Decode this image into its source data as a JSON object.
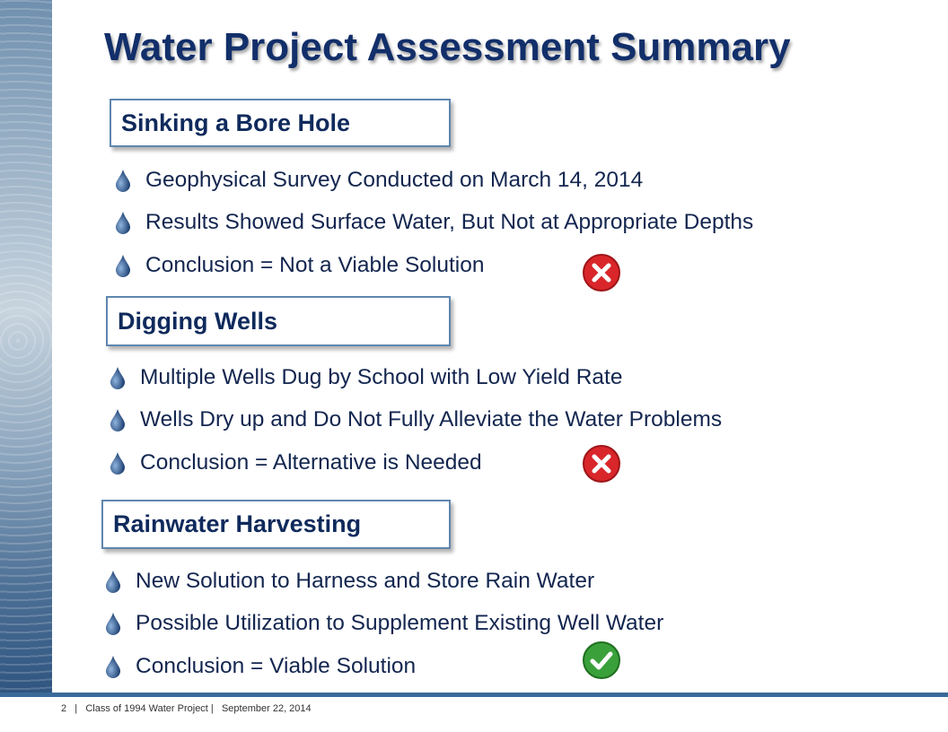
{
  "title": "Water Project Assessment Summary",
  "sections": [
    {
      "heading": "Sinking a Bore Hole",
      "bullets": [
        "Geophysical Survey Conducted on March 14, 2014",
        "Results Showed Surface Water, But Not at Appropriate Depths",
        "Conclusion = Not a Viable Solution"
      ],
      "status_icon": "red-x-icon"
    },
    {
      "heading": "Digging Wells",
      "bullets": [
        "Multiple Wells Dug by School with Low Yield Rate",
        "Wells Dry up and Do Not Fully Alleviate the Water Problems",
        "Conclusion =  Alternative is Needed"
      ],
      "status_icon": "red-x-icon"
    },
    {
      "heading": "Rainwater Harvesting",
      "bullets": [
        "New Solution to Harness and Store Rain Water",
        "Possible Utilization to Supplement Existing Well Water",
        "Conclusion = Viable Solution"
      ],
      "status_icon": "green-check-icon"
    }
  ],
  "footer": {
    "page": "2",
    "project": "Class of 1994 Water Project",
    "date": "September 22, 2014"
  },
  "colors": {
    "title": "#122f6a",
    "accent": "#3a6a98",
    "fail": "#d9262a",
    "pass": "#3aa13a"
  }
}
